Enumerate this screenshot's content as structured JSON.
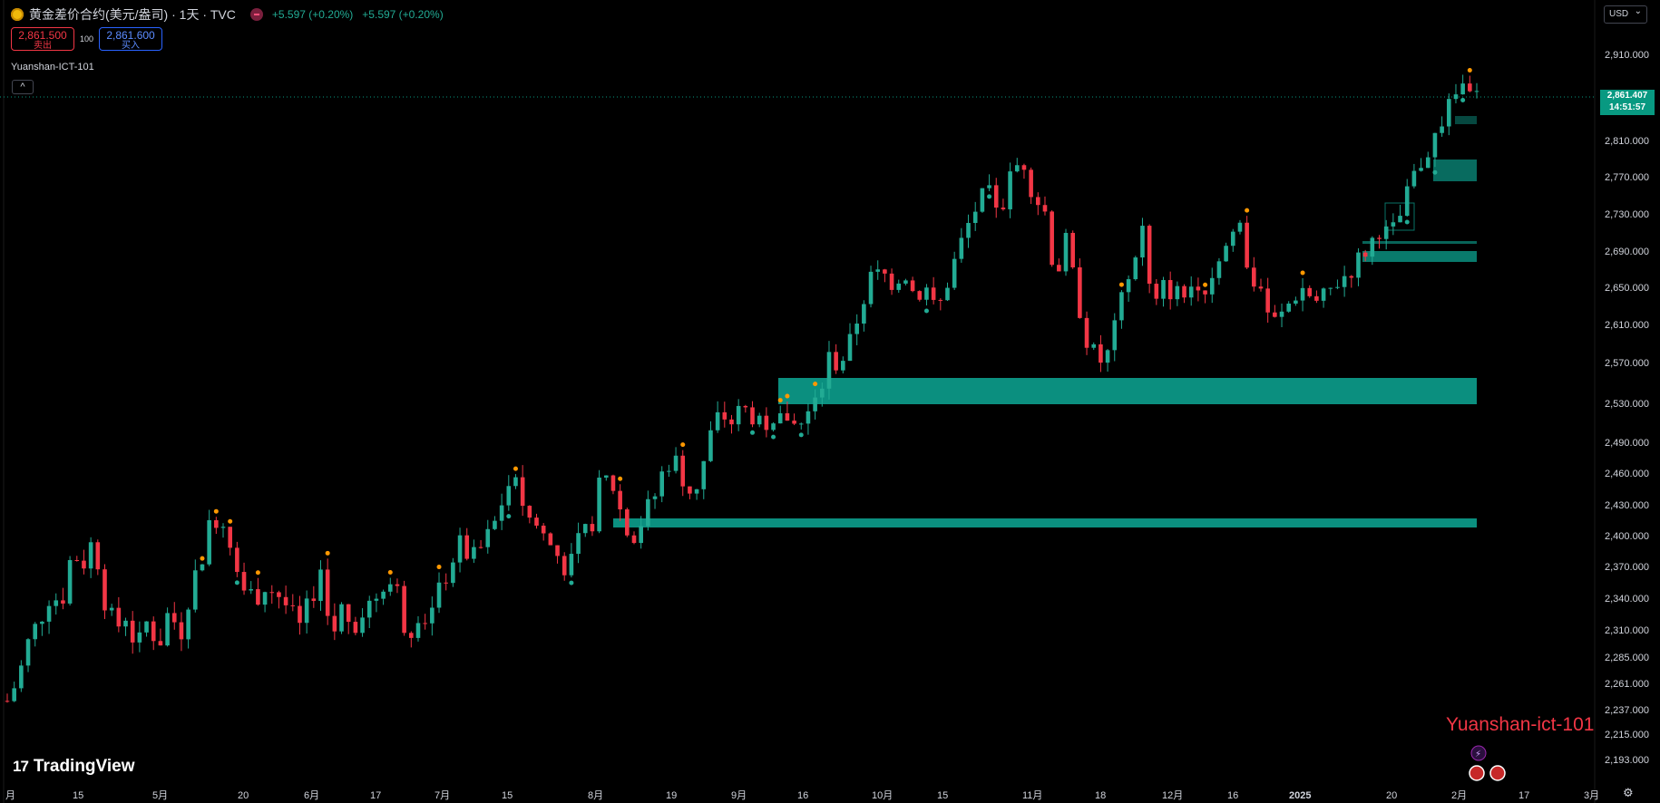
{
  "header": {
    "title": "黄金差价合约(美元/盎司) · 1天 · TVC",
    "change_1": "+5.597 (+0.20%)",
    "change_2": "+5.597 (+0.20%)"
  },
  "trade": {
    "sell_price": "2,861.500",
    "sell_label": "卖出",
    "spread": "100",
    "buy_price": "2,861.600",
    "buy_label": "买入"
  },
  "indicator": {
    "name": "Yuanshan-ICT-101"
  },
  "currency": {
    "label": "USD"
  },
  "last_price": {
    "price": "2,861.407",
    "countdown": "14:51:57"
  },
  "logo": {
    "text": "TradingView"
  },
  "watermark": {
    "text": "Yuanshan-ict-101"
  },
  "chart_data": {
    "type": "candlestick",
    "y_ticks": [
      "2,910.000",
      "2,810.000",
      "2,770.000",
      "2,730.000",
      "2,690.000",
      "2,650.000",
      "2,610.000",
      "2,570.000",
      "2,530.000",
      "2,490.000",
      "2,460.000",
      "2,430.000",
      "2,400.000",
      "2,370.000",
      "2,340.000",
      "2,310.000",
      "2,285.000",
      "2,261.000",
      "2,237.000",
      "2,215.000",
      "2,193.000"
    ],
    "x_ticks": [
      "月",
      "15",
      "5月",
      "20",
      "6月",
      "17",
      "7月",
      "15",
      "8月",
      "19",
      "9月",
      "16",
      "10月",
      "15",
      "11月",
      "18",
      "12月",
      "16",
      "2025",
      "20",
      "2月",
      "17",
      "3月"
    ],
    "up_color": "#22ab94",
    "down_color": "#f23645",
    "zone_color": "#0b8f7f",
    "approx_ohlc_path": [
      2245,
      2265,
      2300,
      2320,
      2345,
      2335,
      2385,
      2372,
      2398,
      2340,
      2310,
      2325,
      2290,
      2320,
      2295,
      2330,
      2305,
      2352,
      2378,
      2420,
      2415,
      2385,
      2345,
      2342,
      2352,
      2345,
      2330,
      2310,
      2335,
      2370,
      2300,
      2332,
      2315,
      2330,
      2340,
      2360,
      2350,
      2305,
      2328,
      2320,
      2345,
      2375,
      2392,
      2375,
      2390,
      2408,
      2440,
      2462,
      2420,
      2410,
      2395,
      2380,
      2365,
      2395,
      2408,
      2455,
      2450,
      2415,
      2402,
      2420,
      2440,
      2472,
      2470,
      2445,
      2450,
      2495,
      2520,
      2510,
      2525,
      2518,
      2512,
      2500,
      2520,
      2505,
      2515,
      2530,
      2575,
      2568,
      2590,
      2630,
      2662,
      2665,
      2655,
      2670,
      2640,
      2650,
      2620,
      2655,
      2690,
      2720,
      2745,
      2750,
      2735,
      2775,
      2790,
      2750,
      2735,
      2660,
      2700,
      2640,
      2590,
      2570,
      2580,
      2630,
      2665,
      2720,
      2620,
      2650,
      2645,
      2640,
      2660,
      2650,
      2680,
      2700,
      2725,
      2660,
      2650,
      2610,
      2620,
      2640,
      2650,
      2630,
      2640,
      2655,
      2665,
      2680,
      2695,
      2715,
      2705,
      2730,
      2765,
      2790,
      2810,
      2840,
      2860,
      2880,
      2861
    ]
  }
}
